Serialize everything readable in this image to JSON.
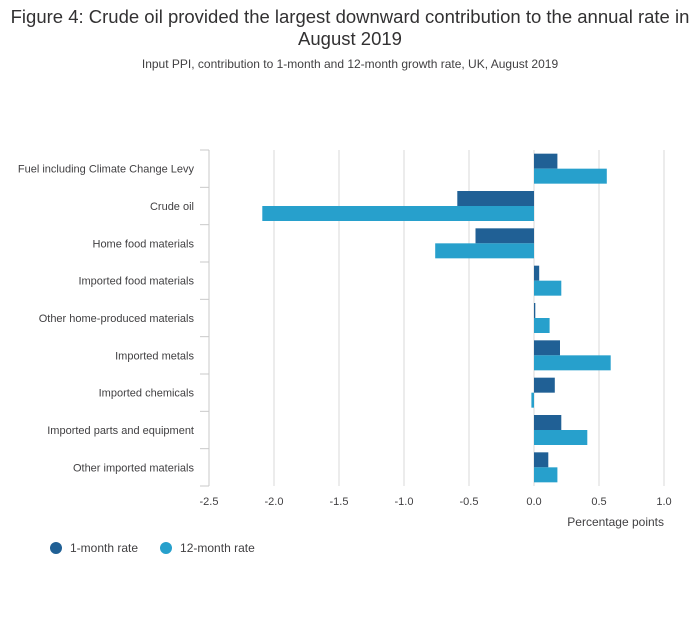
{
  "chart_data": {
    "type": "bar",
    "orientation": "horizontal",
    "title": "Figure 4: Crude oil provided the largest downward contribution to the annual rate in August 2019",
    "subtitle": "Input PPI, contribution to 1-month and 12-month growth rate, UK, August 2019",
    "xlabel": "Percentage points",
    "ylabel": "",
    "xlim": [
      -2.5,
      1.0
    ],
    "xticks": [
      -2.5,
      -2.0,
      -1.5,
      -1.0,
      -0.5,
      0.0,
      0.5,
      1.0
    ],
    "xtick_labels": [
      "-2.5",
      "-2.0",
      "-1.5",
      "-1.0",
      "-0.5",
      "0.0",
      "0.5",
      "1.0"
    ],
    "grid": true,
    "legend_position": "bottom-left",
    "categories": [
      "Fuel including Climate Change Levy",
      "Crude oil",
      "Home food materials",
      "Imported food materials",
      "Other home-produced materials",
      "Imported metals",
      "Imported chemicals",
      "Imported parts and equipment",
      "Other imported materials"
    ],
    "series": [
      {
        "name": "1-month rate",
        "color": "#206095",
        "values": [
          0.18,
          -0.59,
          -0.45,
          0.04,
          0.01,
          0.2,
          0.16,
          0.21,
          0.11
        ]
      },
      {
        "name": "12-month rate",
        "color": "#27a0cc",
        "values": [
          0.56,
          -2.09,
          -0.76,
          0.21,
          0.12,
          0.59,
          -0.02,
          0.41,
          0.18
        ]
      }
    ]
  }
}
